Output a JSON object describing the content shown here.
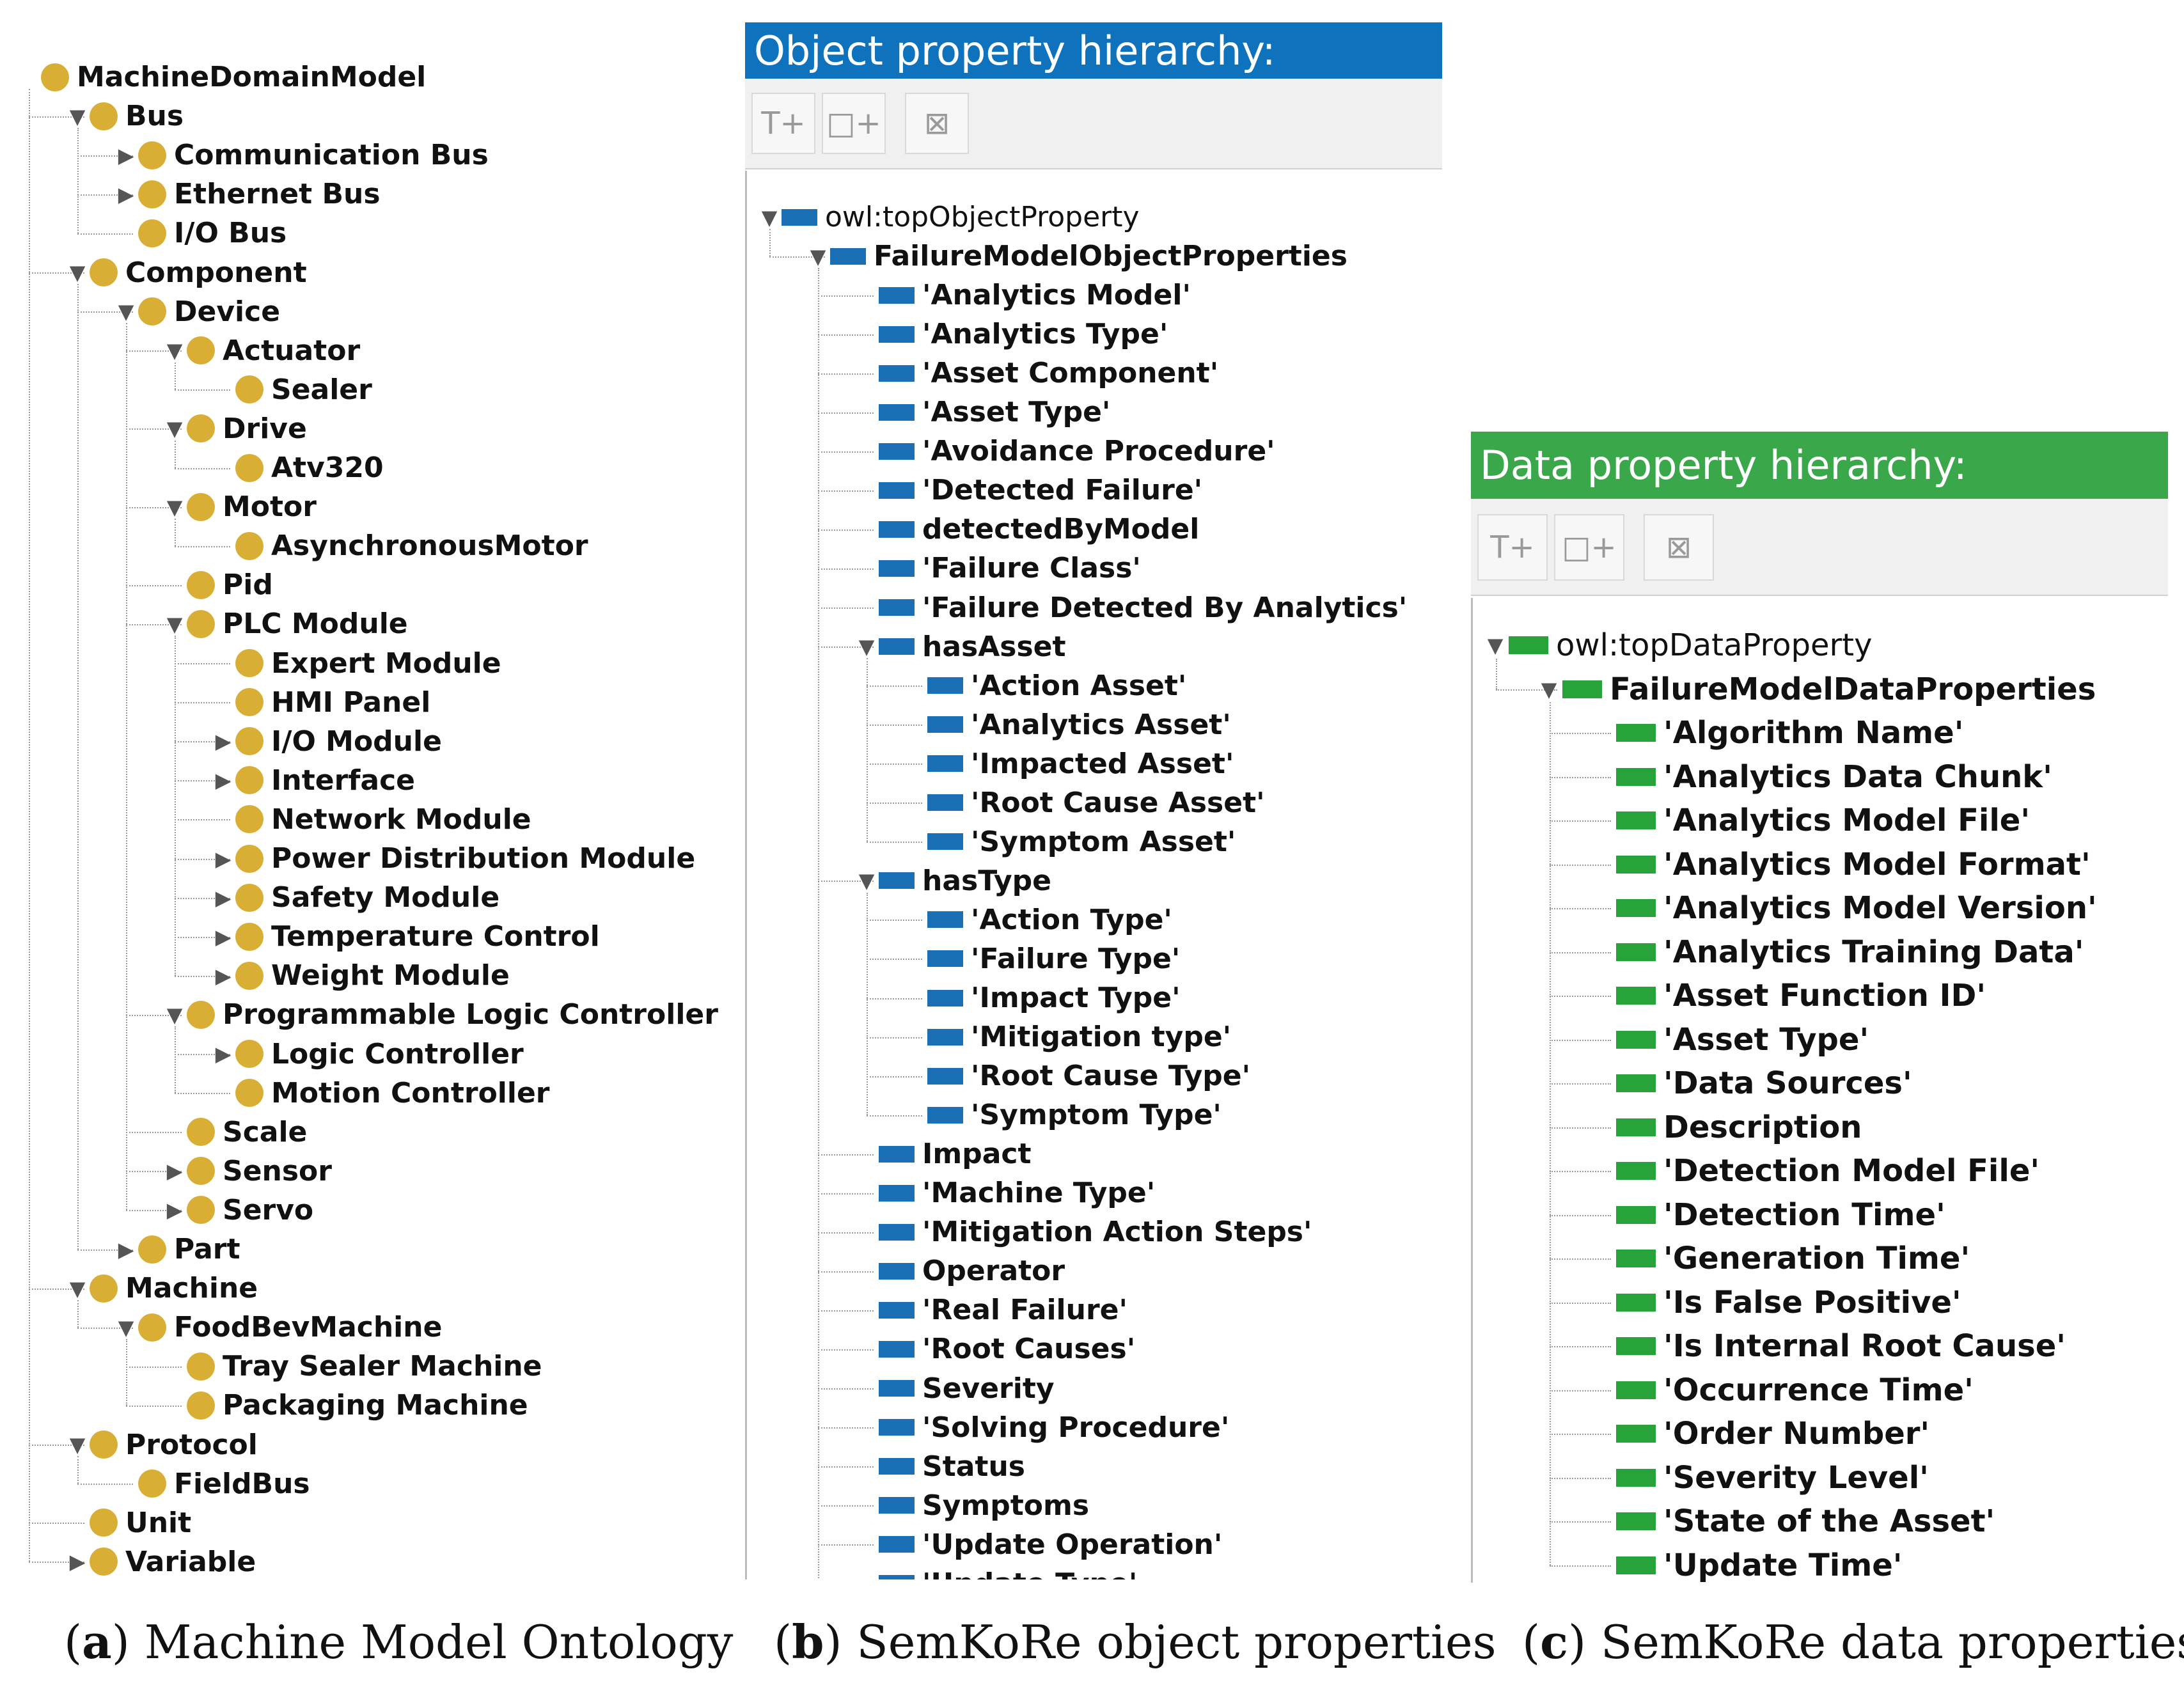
{
  "panel_a": {
    "rows": [
      {
        "label": "MachineDomainModel",
        "depth": 0,
        "toggle": "none"
      },
      {
        "label": "Bus",
        "depth": 1,
        "toggle": "expanded"
      },
      {
        "label": "Communication Bus",
        "depth": 2,
        "toggle": "collapsed"
      },
      {
        "label": "Ethernet Bus",
        "depth": 2,
        "toggle": "collapsed"
      },
      {
        "label": "I/O Bus",
        "depth": 2,
        "toggle": "none"
      },
      {
        "label": "Component",
        "depth": 1,
        "toggle": "expanded"
      },
      {
        "label": "Device",
        "depth": 2,
        "toggle": "expanded"
      },
      {
        "label": "Actuator",
        "depth": 3,
        "toggle": "expanded"
      },
      {
        "label": "Sealer",
        "depth": 4,
        "toggle": "none"
      },
      {
        "label": "Drive",
        "depth": 3,
        "toggle": "expanded"
      },
      {
        "label": "Atv320",
        "depth": 4,
        "toggle": "none"
      },
      {
        "label": "Motor",
        "depth": 3,
        "toggle": "expanded"
      },
      {
        "label": "AsynchronousMotor",
        "depth": 4,
        "toggle": "none"
      },
      {
        "label": "Pid",
        "depth": 3,
        "toggle": "none"
      },
      {
        "label": "PLC Module",
        "depth": 3,
        "toggle": "expanded"
      },
      {
        "label": "Expert Module",
        "depth": 4,
        "toggle": "none"
      },
      {
        "label": "HMI Panel",
        "depth": 4,
        "toggle": "none"
      },
      {
        "label": "I/O Module",
        "depth": 4,
        "toggle": "collapsed"
      },
      {
        "label": "Interface",
        "depth": 4,
        "toggle": "collapsed"
      },
      {
        "label": "Network Module",
        "depth": 4,
        "toggle": "none"
      },
      {
        "label": "Power Distribution Module",
        "depth": 4,
        "toggle": "collapsed"
      },
      {
        "label": "Safety Module",
        "depth": 4,
        "toggle": "collapsed"
      },
      {
        "label": "Temperature Control",
        "depth": 4,
        "toggle": "collapsed"
      },
      {
        "label": "Weight Module",
        "depth": 4,
        "toggle": "collapsed"
      },
      {
        "label": "Programmable Logic Controller",
        "depth": 3,
        "toggle": "expanded"
      },
      {
        "label": "Logic Controller",
        "depth": 4,
        "toggle": "collapsed"
      },
      {
        "label": "Motion Controller",
        "depth": 4,
        "toggle": "none"
      },
      {
        "label": "Scale",
        "depth": 3,
        "toggle": "none"
      },
      {
        "label": "Sensor",
        "depth": 3,
        "toggle": "collapsed"
      },
      {
        "label": "Servo",
        "depth": 3,
        "toggle": "collapsed"
      },
      {
        "label": "Part",
        "depth": 2,
        "toggle": "collapsed"
      },
      {
        "label": "Machine",
        "depth": 1,
        "toggle": "expanded"
      },
      {
        "label": "FoodBevMachine",
        "depth": 2,
        "toggle": "expanded"
      },
      {
        "label": "Tray Sealer Machine",
        "depth": 3,
        "toggle": "none"
      },
      {
        "label": "Packaging Machine",
        "depth": 3,
        "toggle": "none"
      },
      {
        "label": "Protocol",
        "depth": 1,
        "toggle": "expanded"
      },
      {
        "label": "FieldBus",
        "depth": 2,
        "toggle": "none"
      },
      {
        "label": "Unit",
        "depth": 1,
        "toggle": "none"
      },
      {
        "label": "Variable",
        "depth": 1,
        "toggle": "collapsed"
      }
    ]
  },
  "panel_b": {
    "header": "Object property hierarchy:",
    "header_color": "#0f72bd",
    "icon_color": "#1a6fb5",
    "toolbar": {
      "add_sub": "T+",
      "add_sibling": "□+",
      "delete": "⊠"
    },
    "rows": [
      {
        "label": "owl:topObjectProperty",
        "depth": 0,
        "toggle": "expanded",
        "bold": false
      },
      {
        "label": "FailureModelObjectProperties",
        "depth": 1,
        "toggle": "expanded",
        "bold": true
      },
      {
        "label": "'Analytics Model'",
        "depth": 2,
        "toggle": "none",
        "bold": true
      },
      {
        "label": "'Analytics Type'",
        "depth": 2,
        "toggle": "none",
        "bold": true
      },
      {
        "label": "'Asset Component'",
        "depth": 2,
        "toggle": "none",
        "bold": true
      },
      {
        "label": "'Asset Type'",
        "depth": 2,
        "toggle": "none",
        "bold": true
      },
      {
        "label": "'Avoidance Procedure'",
        "depth": 2,
        "toggle": "none",
        "bold": true
      },
      {
        "label": "'Detected Failure'",
        "depth": 2,
        "toggle": "none",
        "bold": true
      },
      {
        "label": "detectedByModel",
        "depth": 2,
        "toggle": "none",
        "bold": true
      },
      {
        "label": "'Failure Class'",
        "depth": 2,
        "toggle": "none",
        "bold": true
      },
      {
        "label": "'Failure Detected By Analytics'",
        "depth": 2,
        "toggle": "none",
        "bold": true
      },
      {
        "label": "hasAsset",
        "depth": 2,
        "toggle": "expanded",
        "bold": true
      },
      {
        "label": "'Action Asset'",
        "depth": 3,
        "toggle": "none",
        "bold": true
      },
      {
        "label": "'Analytics Asset'",
        "depth": 3,
        "toggle": "none",
        "bold": true
      },
      {
        "label": "'Impacted Asset'",
        "depth": 3,
        "toggle": "none",
        "bold": true
      },
      {
        "label": "'Root Cause Asset'",
        "depth": 3,
        "toggle": "none",
        "bold": true
      },
      {
        "label": "'Symptom Asset'",
        "depth": 3,
        "toggle": "none",
        "bold": true
      },
      {
        "label": "hasType",
        "depth": 2,
        "toggle": "expanded",
        "bold": true
      },
      {
        "label": "'Action Type'",
        "depth": 3,
        "toggle": "none",
        "bold": true
      },
      {
        "label": "'Failure Type'",
        "depth": 3,
        "toggle": "none",
        "bold": true
      },
      {
        "label": "'Impact Type'",
        "depth": 3,
        "toggle": "none",
        "bold": true
      },
      {
        "label": "'Mitigation type'",
        "depth": 3,
        "toggle": "none",
        "bold": true
      },
      {
        "label": "'Root Cause Type'",
        "depth": 3,
        "toggle": "none",
        "bold": true
      },
      {
        "label": "'Symptom Type'",
        "depth": 3,
        "toggle": "none",
        "bold": true
      },
      {
        "label": "Impact",
        "depth": 2,
        "toggle": "none",
        "bold": true
      },
      {
        "label": "'Machine Type'",
        "depth": 2,
        "toggle": "none",
        "bold": true
      },
      {
        "label": "'Mitigation Action Steps'",
        "depth": 2,
        "toggle": "none",
        "bold": true
      },
      {
        "label": "Operator",
        "depth": 2,
        "toggle": "none",
        "bold": true
      },
      {
        "label": "'Real Failure'",
        "depth": 2,
        "toggle": "none",
        "bold": true
      },
      {
        "label": "'Root Causes'",
        "depth": 2,
        "toggle": "none",
        "bold": true
      },
      {
        "label": "Severity",
        "depth": 2,
        "toggle": "none",
        "bold": true
      },
      {
        "label": "'Solving Procedure'",
        "depth": 2,
        "toggle": "none",
        "bold": true
      },
      {
        "label": "Status",
        "depth": 2,
        "toggle": "none",
        "bold": true
      },
      {
        "label": "Symptoms",
        "depth": 2,
        "toggle": "none",
        "bold": true
      },
      {
        "label": "'Update Operation'",
        "depth": 2,
        "toggle": "none",
        "bold": true
      },
      {
        "label": "'Update Type'",
        "depth": 2,
        "toggle": "none",
        "bold": true
      }
    ]
  },
  "panel_c": {
    "header": "Data property hierarchy:",
    "header_color": "#3aa84a",
    "icon_color": "#27a33a",
    "toolbar": {
      "add_sub": "T+",
      "add_sibling": "□+",
      "delete": "⊠"
    },
    "rows": [
      {
        "label": "owl:topDataProperty",
        "depth": 0,
        "toggle": "expanded",
        "bold": false
      },
      {
        "label": "FailureModelDataProperties",
        "depth": 1,
        "toggle": "expanded",
        "bold": true
      },
      {
        "label": "'Algorithm Name'",
        "depth": 2,
        "toggle": "none",
        "bold": true
      },
      {
        "label": "'Analytics Data Chunk'",
        "depth": 2,
        "toggle": "none",
        "bold": true
      },
      {
        "label": "'Analytics Model File'",
        "depth": 2,
        "toggle": "none",
        "bold": true
      },
      {
        "label": "'Analytics Model Format'",
        "depth": 2,
        "toggle": "none",
        "bold": true
      },
      {
        "label": "'Analytics Model Version'",
        "depth": 2,
        "toggle": "none",
        "bold": true
      },
      {
        "label": "'Analytics Training Data'",
        "depth": 2,
        "toggle": "none",
        "bold": true
      },
      {
        "label": "'Asset Function ID'",
        "depth": 2,
        "toggle": "none",
        "bold": true
      },
      {
        "label": "'Asset Type'",
        "depth": 2,
        "toggle": "none",
        "bold": true
      },
      {
        "label": "'Data Sources'",
        "depth": 2,
        "toggle": "none",
        "bold": true
      },
      {
        "label": "Description",
        "depth": 2,
        "toggle": "none",
        "bold": true
      },
      {
        "label": "'Detection Model File'",
        "depth": 2,
        "toggle": "none",
        "bold": true
      },
      {
        "label": "'Detection Time'",
        "depth": 2,
        "toggle": "none",
        "bold": true
      },
      {
        "label": "'Generation Time'",
        "depth": 2,
        "toggle": "none",
        "bold": true
      },
      {
        "label": "'Is False Positive'",
        "depth": 2,
        "toggle": "none",
        "bold": true
      },
      {
        "label": "'Is Internal Root Cause'",
        "depth": 2,
        "toggle": "none",
        "bold": true
      },
      {
        "label": "'Occurrence Time'",
        "depth": 2,
        "toggle": "none",
        "bold": true
      },
      {
        "label": "'Order Number'",
        "depth": 2,
        "toggle": "none",
        "bold": true
      },
      {
        "label": "'Severity Level'",
        "depth": 2,
        "toggle": "none",
        "bold": true
      },
      {
        "label": "'State of the Asset'",
        "depth": 2,
        "toggle": "none",
        "bold": true
      },
      {
        "label": "'Update Time'",
        "depth": 2,
        "toggle": "none",
        "bold": true
      }
    ]
  },
  "captions": {
    "a_letter": "a",
    "a_text": "Machine Model Ontology",
    "b_letter": "b",
    "b_text": "SemKoRe object properties",
    "c_letter": "c",
    "c_text": "SemKoRe data properties"
  }
}
